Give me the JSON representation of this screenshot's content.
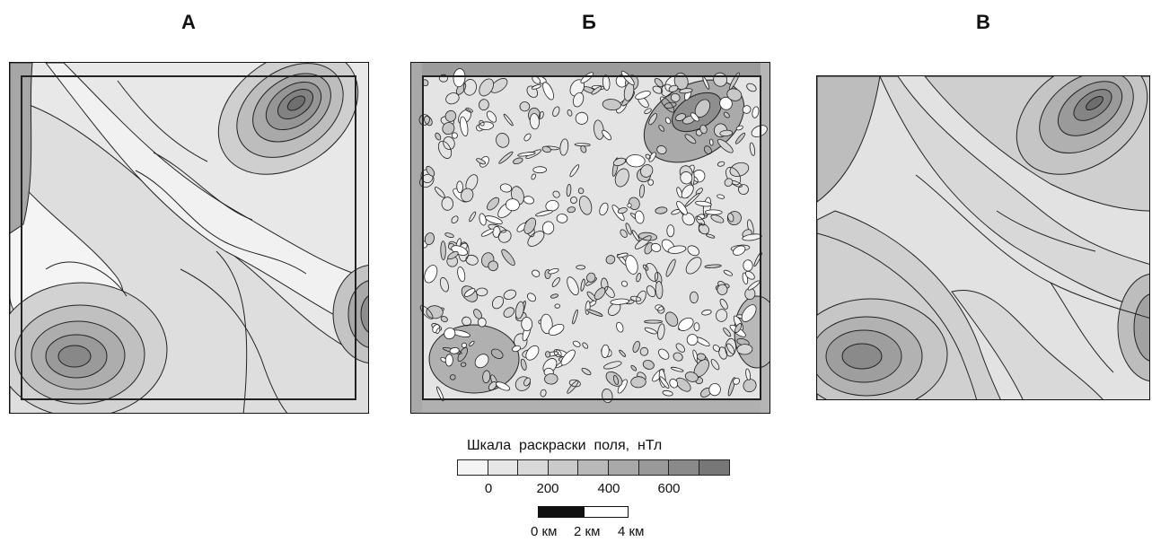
{
  "panels": [
    {
      "label": "А"
    },
    {
      "label": "Б"
    },
    {
      "label": "В"
    }
  ],
  "legend": {
    "title": "Шкала  раскраски  поля,  нТл",
    "tick_labels": [
      "0",
      "200",
      "400",
      "600"
    ],
    "colors": [
      "#f4f4f4",
      "#e6e6e6",
      "#d9d9d9",
      "#cacaca",
      "#b9b9b9",
      "#a9a9a9",
      "#999999",
      "#8a8a8a",
      "#777777"
    ]
  },
  "scale_bar": {
    "labels": [
      "0 км",
      "2 км",
      "4 км"
    ]
  }
}
